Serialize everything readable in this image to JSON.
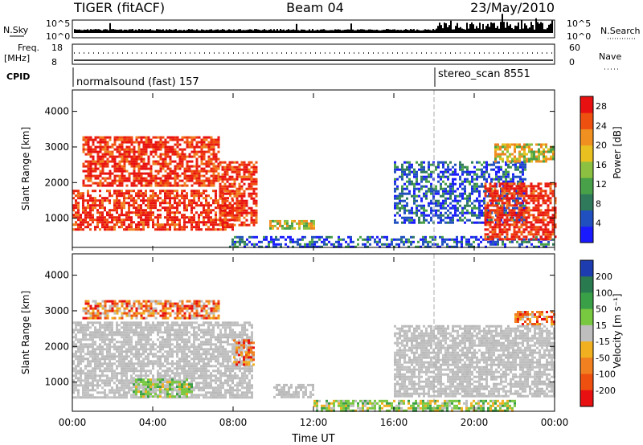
{
  "header": {
    "radar": "TIGER (fitACF)",
    "beam": "Beam 04",
    "date": "23/May/2010"
  },
  "info_panels": {
    "nsky_label": "N.Sky",
    "nsky_ticks": [
      "10^5",
      "10^0"
    ],
    "nsearch_label": "N.Search",
    "nsearch_ticks": [
      "10^5",
      "10^0"
    ],
    "freq_label": "Freq.",
    "freq_unit": "[MHz]",
    "freq_ticks": [
      "18",
      "8"
    ],
    "nave_label": "Nave",
    "nave_ticks": [
      "60",
      "0"
    ],
    "cpid_label": "CPID",
    "cpid_segments": [
      {
        "name": "normalsound (fast) 157",
        "start_hour": 0
      },
      {
        "name": "stereo_scan 8551",
        "start_hour": 18
      }
    ]
  },
  "chart_data": [
    {
      "type": "heatmap",
      "parameter": "Power",
      "ylabel": "Slant Range [km]",
      "ylim": [
        180,
        4600
      ],
      "yticks": [
        1000,
        2000,
        3000,
        4000
      ],
      "xlim_hours": [
        0,
        24
      ],
      "colorbar": {
        "label": "Power [dB]",
        "ticks": [
          "4",
          "8",
          "12",
          "16",
          "20",
          "24",
          "28"
        ],
        "range": [
          0,
          30
        ],
        "colors": [
          "#1a1aff",
          "#2050c0",
          "#2e7a5a",
          "#48a048",
          "#8cc040",
          "#e8c020",
          "#f09020",
          "#ee5010",
          "#e81010"
        ]
      },
      "echo_regions": [
        {
          "t0": 0.0,
          "t1": 8.0,
          "r0": 700,
          "r1": 1800,
          "level": "high"
        },
        {
          "t0": 0.5,
          "t1": 7.3,
          "r0": 1900,
          "r1": 3300,
          "level": "high"
        },
        {
          "t0": 7.3,
          "t1": 9.2,
          "r0": 800,
          "r1": 2600,
          "level": "high"
        },
        {
          "t0": 9.8,
          "t1": 12.0,
          "r0": 700,
          "r1": 950,
          "level": "mid"
        },
        {
          "t0": 7.8,
          "t1": 24.0,
          "r0": 180,
          "r1": 500,
          "level": "low"
        },
        {
          "t0": 16.0,
          "t1": 22.5,
          "r0": 900,
          "r1": 2600,
          "level": "low"
        },
        {
          "t0": 20.5,
          "t1": 24.0,
          "r0": 400,
          "r1": 2000,
          "level": "high"
        },
        {
          "t0": 21.0,
          "t1": 24.0,
          "r0": 2600,
          "r1": 3100,
          "level": "mid"
        }
      ]
    },
    {
      "type": "heatmap",
      "parameter": "Velocity",
      "ylabel": "Slant Range [km]",
      "ylim": [
        180,
        4600
      ],
      "yticks": [
        1000,
        2000,
        3000,
        4000
      ],
      "xlim_hours": [
        0,
        24
      ],
      "colorbar": {
        "label": "Velocity [m s⁻¹]",
        "ticks": [
          "200",
          "100",
          "50",
          "15",
          "-15",
          "-50",
          "-100",
          "-200"
        ],
        "colors": [
          "#1c3cb0",
          "#2a7a50",
          "#3aa048",
          "#78c840",
          "#bebebe",
          "#f0b020",
          "#f08020",
          "#ee5010",
          "#e81010"
        ]
      },
      "echo_regions": [
        {
          "t0": 0.0,
          "t1": 9.0,
          "r0": 600,
          "r1": 2700,
          "level": "ground"
        },
        {
          "t0": 0.5,
          "t1": 7.3,
          "r0": 2800,
          "r1": 3300,
          "level": "negative"
        },
        {
          "t0": 8.0,
          "t1": 9.0,
          "r0": 1500,
          "r1": 2200,
          "level": "negative"
        },
        {
          "t0": 3.0,
          "t1": 6.0,
          "r0": 600,
          "r1": 1100,
          "level": "positive"
        },
        {
          "t0": 10.0,
          "t1": 12.0,
          "r0": 600,
          "r1": 950,
          "level": "ground"
        },
        {
          "t0": 12.0,
          "t1": 22.0,
          "r0": 180,
          "r1": 500,
          "level": "positive"
        },
        {
          "t0": 16.0,
          "t1": 24.0,
          "r0": 600,
          "r1": 2600,
          "level": "ground"
        },
        {
          "t0": 22.0,
          "t1": 24.0,
          "r0": 2600,
          "r1": 3000,
          "level": "negative"
        }
      ]
    }
  ],
  "x_axis": {
    "ticks": [
      "00:00",
      "04:00",
      "08:00",
      "12:00",
      "16:00",
      "20:00",
      "00:00"
    ],
    "label": "Time UT"
  }
}
